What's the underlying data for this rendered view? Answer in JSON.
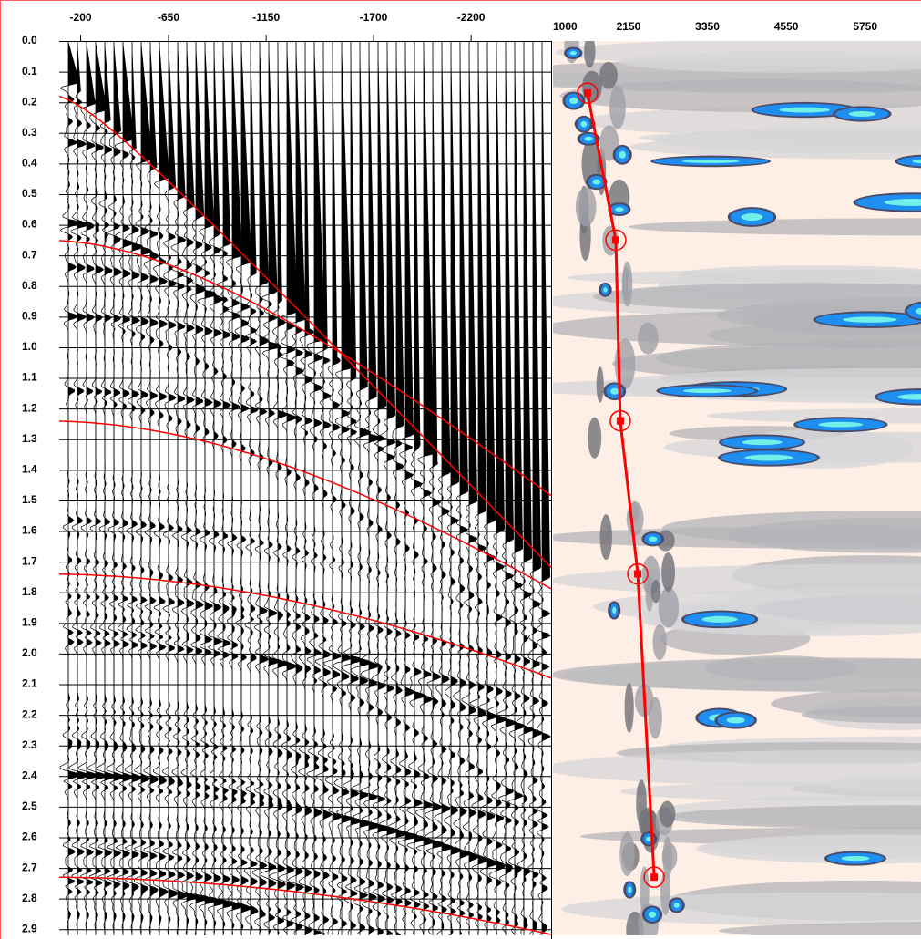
{
  "chart_data": [
    {
      "type": "seismic-gather",
      "xlim": [
        -90,
        -2610
      ],
      "xticks": [
        -200,
        -650,
        -1150,
        -1700,
        -2200
      ],
      "ylim": [
        0,
        2.92
      ],
      "yticks": [
        {
          "value": 0,
          "label": "0.0"
        },
        0.1,
        0.2,
        0.3,
        0.4,
        0.5,
        0.6,
        0.7,
        0.8,
        0.9,
        {
          "value": 1,
          "label": "1.0"
        },
        1.1,
        1.2,
        1.3,
        1.4,
        1.5,
        1.6,
        1.7,
        1.8,
        1.9,
        {
          "value": 2,
          "label": "2.0"
        },
        2.1,
        2.2,
        2.3,
        2.4,
        2.5,
        2.6,
        2.7,
        2.8,
        2.9
      ],
      "grid": true,
      "color": "#000000"
    },
    {
      "type": "semblance",
      "xlim": [
        1000,
        6600
      ],
      "xticks": [
        1000,
        2150,
        3350,
        4550,
        5750
      ],
      "ylim": [
        0,
        2.92
      ],
      "background": "#fdeee6",
      "picks": {
        "color": "#ff0000",
        "x": [
          1526,
          1956,
          2025,
          2290,
          2540
        ],
        "y": [
          0.17,
          0.65,
          1.24,
          1.74,
          2.73
        ]
      }
    }
  ]
}
